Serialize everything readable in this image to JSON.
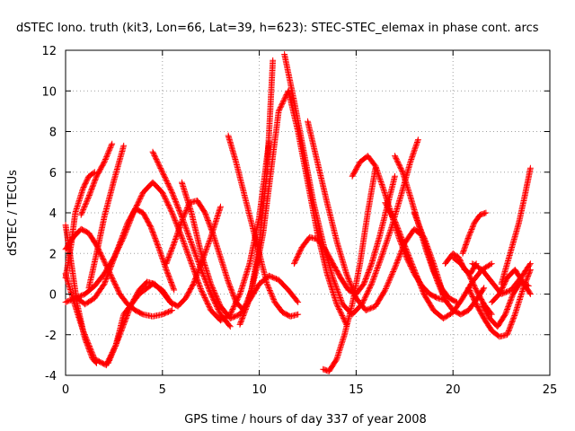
{
  "chart_data": {
    "type": "scatter",
    "title": "dSTEC Iono. truth (kit3, Lon=66, Lat=39, h=623): STEC-STEC_elemax in phase cont. arcs",
    "xlabel": "GPS time / hours of day 337 of year 2008",
    "ylabel": "dSTEC  / TECUs",
    "xlim": [
      0,
      25
    ],
    "ylim": [
      -4,
      12
    ],
    "xticks": [
      "0",
      "5",
      "10",
      "15",
      "20",
      "25"
    ],
    "yticks": [
      "-4",
      "-2",
      "0",
      "2",
      "4",
      "6",
      "8",
      "10",
      "12"
    ],
    "grid": true,
    "marker": "+",
    "colors": {
      "series": "#ff0000",
      "grid": "#a0a0a0",
      "axis": "#000000"
    },
    "series": [
      {
        "x": [
          0.0,
          0.3,
          0.6,
          1.0,
          1.4,
          1.6
        ],
        "y": [
          3.4,
          1.5,
          -0.5,
          -2.2,
          -3.2,
          -3.4
        ]
      },
      {
        "x": [
          0.0,
          0.4,
          0.9,
          1.5,
          2.1,
          2.6,
          3.0,
          3.8,
          4.5,
          5.0,
          5.5
        ],
        "y": [
          1.0,
          -0.3,
          -1.8,
          -3.2,
          -3.5,
          -2.5,
          -1.0,
          0.0,
          0.5,
          0.2,
          -0.5
        ]
      },
      {
        "x": [
          0.0,
          0.3,
          0.5,
          0.9,
          1.2,
          1.5
        ],
        "y": [
          0.8,
          2.5,
          4.0,
          5.2,
          5.8,
          6.0
        ]
      },
      {
        "x": [
          0.0,
          0.5,
          1.0,
          1.5,
          2.0,
          2.5,
          3.0,
          3.5,
          4.0,
          4.5,
          5.0,
          5.5,
          6.0,
          6.5,
          7.0,
          7.5,
          8.0,
          8.5,
          9.0,
          9.5,
          10.0,
          10.3,
          10.5
        ],
        "y": [
          -0.4,
          -0.2,
          0.0,
          0.4,
          1.0,
          1.8,
          2.8,
          4.0,
          5.0,
          5.5,
          5.0,
          4.0,
          2.8,
          1.5,
          0.2,
          -0.8,
          -1.3,
          -1.0,
          0.0,
          1.5,
          3.8,
          6.0,
          7.5
        ]
      },
      {
        "x": [
          0.0,
          0.4,
          0.8,
          1.2,
          1.6,
          2.0,
          2.4,
          2.8,
          3.2,
          3.6,
          4.0,
          4.5,
          5.0,
          5.5
        ],
        "y": [
          2.2,
          2.8,
          3.2,
          3.0,
          2.4,
          1.6,
          0.8,
          0.0,
          -0.5,
          -0.8,
          -1.0,
          -1.1,
          -1.0,
          -0.8
        ]
      },
      {
        "x": [
          0.6,
          1.0,
          1.5,
          2.0,
          2.4,
          2.8,
          3.2,
          3.6,
          4.0,
          4.4,
          4.8,
          5.2,
          5.6
        ],
        "y": [
          -0.2,
          -0.5,
          -0.2,
          0.5,
          1.5,
          2.5,
          3.5,
          4.2,
          4.0,
          3.3,
          2.3,
          1.2,
          0.2
        ]
      },
      {
        "x": [
          0.8,
          1.2,
          1.6,
          2.0,
          2.4
        ],
        "y": [
          3.9,
          4.8,
          5.8,
          6.5,
          7.4
        ]
      },
      {
        "x": [
          1.2,
          1.6,
          2.0,
          2.5,
          3.0
        ],
        "y": [
          0.3,
          2.0,
          3.8,
          5.6,
          7.3
        ]
      },
      {
        "x": [
          2.2,
          2.6,
          3.0,
          3.4,
          3.8,
          4.2,
          4.6,
          5.0,
          5.4,
          5.8,
          6.2,
          6.6,
          7.0,
          7.5,
          8.0
        ],
        "y": [
          -3.4,
          -2.5,
          -1.5,
          -0.5,
          0.2,
          0.6,
          0.5,
          0.1,
          -0.4,
          -0.6,
          -0.2,
          0.5,
          1.5,
          2.8,
          4.3
        ]
      },
      {
        "x": [
          4.5,
          5.0,
          5.5,
          6.0,
          6.5,
          7.0,
          7.5,
          8.0,
          8.5
        ],
        "y": [
          7.0,
          6.0,
          5.0,
          3.8,
          2.5,
          1.2,
          0.0,
          -1.0,
          -1.6
        ]
      },
      {
        "x": [
          5.2,
          5.6,
          6.0,
          6.4,
          6.8,
          7.2,
          7.6,
          8.0,
          8.4,
          8.8,
          9.2,
          9.6,
          10.0,
          10.4,
          10.7
        ],
        "y": [
          1.5,
          2.5,
          3.6,
          4.5,
          4.6,
          4.0,
          3.0,
          1.8,
          0.6,
          -0.4,
          -0.8,
          0.2,
          2.5,
          6.0,
          11.5
        ]
      },
      {
        "x": [
          6.0,
          6.5,
          7.0,
          7.5,
          8.0,
          8.5,
          9.0,
          9.5,
          10.0,
          10.5,
          11.0,
          11.5,
          12.0
        ],
        "y": [
          5.5,
          4.0,
          2.0,
          0.5,
          -0.6,
          -1.2,
          -1.0,
          -0.3,
          0.5,
          0.9,
          0.7,
          0.2,
          -0.4
        ]
      },
      {
        "x": [
          8.4,
          8.8,
          9.2,
          9.6,
          10.0,
          10.4,
          10.8,
          11.2,
          11.6,
          12.0
        ],
        "y": [
          7.8,
          6.5,
          5.0,
          3.5,
          2.0,
          0.5,
          -0.4,
          -0.9,
          -1.1,
          -1.0
        ]
      },
      {
        "x": [
          9.0,
          9.4,
          9.8,
          10.2,
          10.6,
          11.0,
          11.5,
          12.0,
          12.5,
          13.0,
          13.5,
          14.0,
          14.5
        ],
        "y": [
          -1.5,
          -0.5,
          1.0,
          3.0,
          6.0,
          9.0,
          10.0,
          8.0,
          5.5,
          3.0,
          1.0,
          -0.5,
          -1.5
        ]
      },
      {
        "x": [
          11.3,
          11.8,
          12.3,
          12.8,
          13.3,
          13.8,
          14.3,
          14.8,
          15.3,
          15.8,
          16.3,
          16.8,
          17.3,
          17.8,
          18.2
        ],
        "y": [
          11.8,
          9.5,
          7.0,
          4.5,
          2.5,
          0.8,
          -0.5,
          -1.0,
          -0.5,
          0.5,
          1.8,
          3.2,
          4.8,
          6.5,
          7.6
        ]
      },
      {
        "x": [
          11.8,
          12.2,
          12.6,
          13.0,
          13.4,
          13.8,
          14.2,
          14.6,
          15.0,
          15.4,
          15.8,
          16.2,
          16.6,
          17.0
        ],
        "y": [
          1.5,
          2.3,
          2.8,
          2.7,
          2.2,
          1.5,
          0.8,
          0.2,
          0.0,
          0.5,
          1.5,
          2.8,
          4.3,
          5.8
        ]
      },
      {
        "x": [
          12.5,
          13.0,
          13.5,
          14.0,
          14.5,
          15.0,
          15.5,
          16.0,
          16.5,
          17.0,
          17.5,
          18.0,
          18.5,
          19.0,
          19.5
        ],
        "y": [
          8.5,
          6.5,
          4.5,
          2.6,
          1.0,
          -0.2,
          -0.8,
          -0.6,
          0.2,
          1.3,
          2.5,
          3.2,
          2.8,
          1.5,
          0.0
        ]
      },
      {
        "x": [
          13.3,
          13.6,
          14.0,
          14.4,
          14.8,
          15.2,
          15.6,
          16.0
        ],
        "y": [
          -3.7,
          -3.8,
          -3.2,
          -2.0,
          -0.5,
          1.5,
          4.0,
          6.2
        ]
      },
      {
        "x": [
          14.8,
          15.2,
          15.6,
          16.0,
          16.4,
          16.8,
          17.2,
          17.6,
          18.0,
          18.4,
          18.8,
          19.2,
          19.6
        ],
        "y": [
          5.8,
          6.5,
          6.8,
          6.3,
          5.2,
          4.0,
          2.8,
          1.8,
          1.0,
          0.4,
          0.0,
          -0.2,
          -0.3
        ]
      },
      {
        "x": [
          16.5,
          17.0,
          17.5,
          18.0,
          18.5,
          19.0,
          19.5,
          20.0,
          20.5,
          21.0,
          21.5,
          22.0
        ],
        "y": [
          4.5,
          3.6,
          2.4,
          1.2,
          0.0,
          -0.8,
          -1.2,
          -0.9,
          -0.2,
          0.6,
          1.2,
          1.5
        ]
      },
      {
        "x": [
          17.0,
          17.4,
          17.8,
          18.2,
          18.6,
          19.0,
          19.4,
          19.8,
          20.2
        ],
        "y": [
          6.8,
          6.0,
          4.8,
          3.5,
          2.2,
          1.1,
          0.3,
          -0.2,
          -0.4
        ]
      },
      {
        "x": [
          18.0,
          18.4,
          18.8,
          19.2,
          19.6,
          20.0,
          20.4,
          20.8,
          21.2,
          21.6
        ],
        "y": [
          4.0,
          3.0,
          1.8,
          0.6,
          -0.3,
          -0.8,
          -1.0,
          -0.8,
          -0.3,
          0.3
        ]
      },
      {
        "x": [
          19.6,
          20.0,
          20.3,
          20.6,
          20.9,
          21.2
        ],
        "y": [
          1.5,
          2.0,
          1.8,
          1.2,
          1.0,
          1.5
        ]
      },
      {
        "x": [
          20.0,
          20.4,
          20.8,
          21.2,
          21.6,
          22.0
        ],
        "y": [
          1.8,
          1.5,
          1.0,
          0.2,
          -0.5,
          -1.0
        ]
      },
      {
        "x": [
          20.5,
          20.8,
          21.1,
          21.4,
          21.7
        ],
        "y": [
          2.0,
          2.8,
          3.5,
          3.9,
          4.0
        ]
      },
      {
        "x": [
          20.8,
          21.2,
          21.6,
          22.0,
          22.4,
          22.8,
          23.2,
          23.6,
          24.0
        ],
        "y": [
          0.3,
          -0.5,
          -1.2,
          -1.8,
          -2.1,
          -2.0,
          -1.0,
          0.2,
          1.2
        ]
      },
      {
        "x": [
          21.0,
          21.5,
          22.0,
          22.5,
          23.0,
          23.5,
          24.0
        ],
        "y": [
          1.5,
          1.2,
          0.6,
          0.0,
          0.2,
          0.8,
          1.5
        ]
      },
      {
        "x": [
          21.5,
          21.9,
          22.3,
          22.7,
          23.1,
          23.5,
          23.9
        ],
        "y": [
          -0.5,
          -1.2,
          -1.6,
          -1.0,
          0.0,
          0.6,
          0.4
        ]
      },
      {
        "x": [
          22.0,
          22.4,
          22.8,
          23.2,
          23.6,
          24.0
        ],
        "y": [
          -0.4,
          0.0,
          0.8,
          1.2,
          0.6,
          0.0
        ]
      },
      {
        "x": [
          22.5,
          22.8,
          23.1,
          23.4,
          23.7,
          24.0
        ],
        "y": [
          0.5,
          1.5,
          2.5,
          3.5,
          4.8,
          6.2
        ]
      }
    ]
  }
}
